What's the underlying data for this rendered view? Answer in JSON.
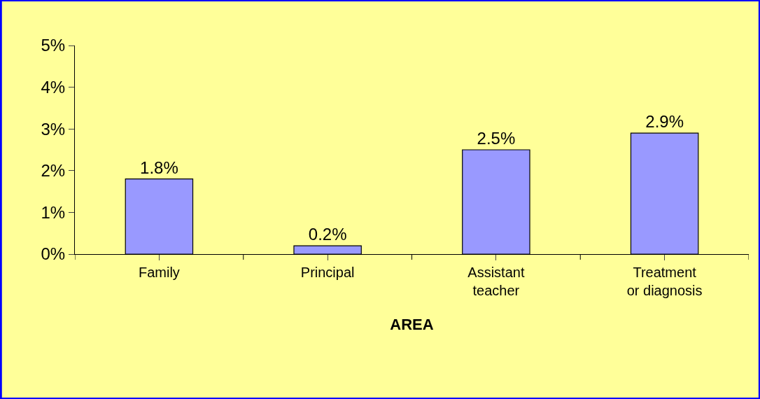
{
  "chart_data": {
    "type": "bar",
    "xlabel": "AREA",
    "categories": [
      "Family",
      "Principal",
      "Assistant\nteacher",
      "Treatment\nor diagnosis"
    ],
    "values": [
      1.8,
      0.2,
      2.5,
      2.9
    ],
    "value_labels": [
      "1.8%",
      "0.2%",
      "2.5%",
      "2.9%"
    ],
    "color": "#9999ff",
    "ylim": [
      0,
      5
    ],
    "yticks": [
      {
        "value": 0,
        "label": "0%"
      },
      {
        "value": 1,
        "label": "1%"
      },
      {
        "value": 2,
        "label": "2%"
      },
      {
        "value": 3,
        "label": "3%"
      },
      {
        "value": 4,
        "label": "4%"
      },
      {
        "value": 5,
        "label": "5%"
      }
    ],
    "grid": false,
    "legend": false
  }
}
